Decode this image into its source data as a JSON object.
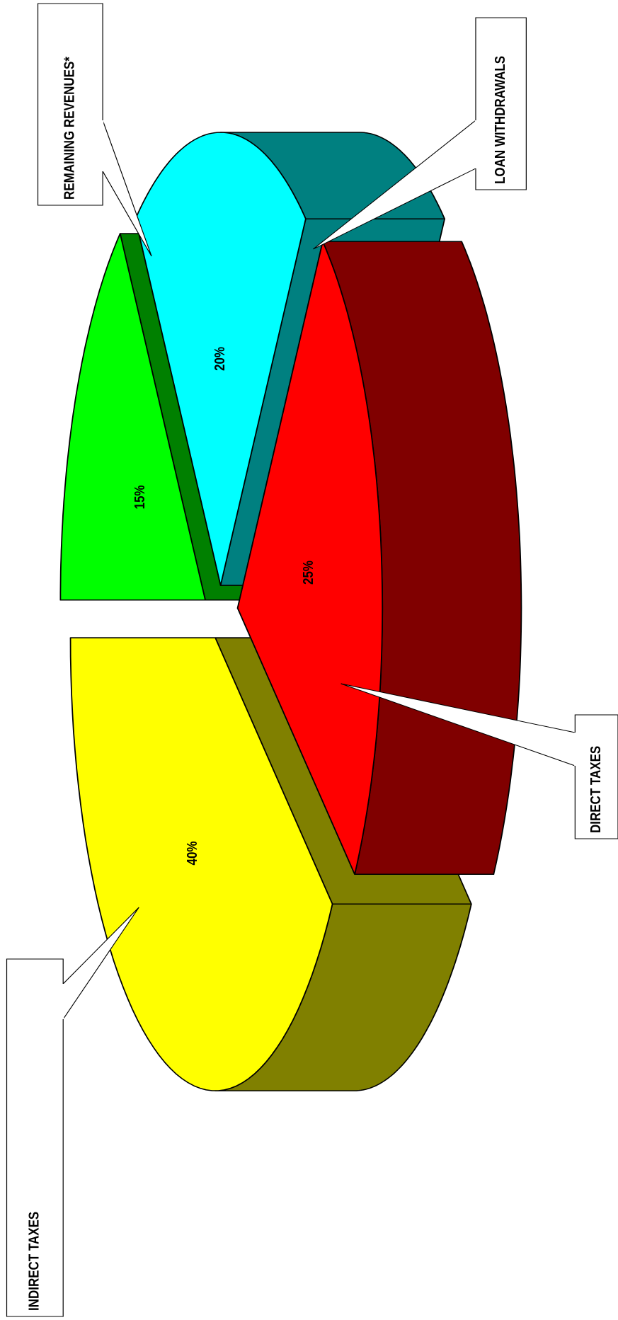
{
  "chart_data": {
    "type": "pie3d",
    "categories": [
      "INDIRECT TAXES",
      "DIRECT TAXES",
      "LOAN WITHDRAWALS",
      "REMAINING REVENUES*"
    ],
    "values": [
      40,
      25,
      20,
      15
    ],
    "value_labels": [
      "40%",
      "25%",
      "20%",
      "15%"
    ],
    "colors": [
      "#ffff00",
      "#ff0000",
      "#00ffff",
      "#00ff00"
    ],
    "side_colors": [
      "#808000",
      "#800000",
      "#008080",
      "#008000"
    ]
  }
}
